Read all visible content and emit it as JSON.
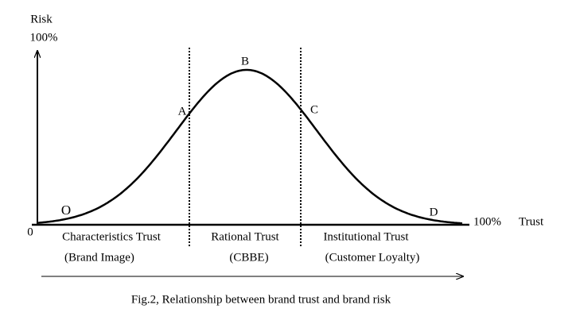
{
  "axes": {
    "y_label": "Risk",
    "y_max": "100%",
    "origin": "0",
    "x_max": "100%",
    "x_label": "Trust"
  },
  "points": [
    "O",
    "A",
    "B",
    "C",
    "D"
  ],
  "regions": [
    {
      "title": "Characteristics Trust",
      "subtitle": "(Brand Image)"
    },
    {
      "title": "Rational Trust",
      "subtitle": "(CBBE)"
    },
    {
      "title": "Institutional Trust",
      "subtitle": "(Customer Loyalty)"
    }
  ],
  "caption": "Fig.2, Relationship between brand trust and brand risk"
}
